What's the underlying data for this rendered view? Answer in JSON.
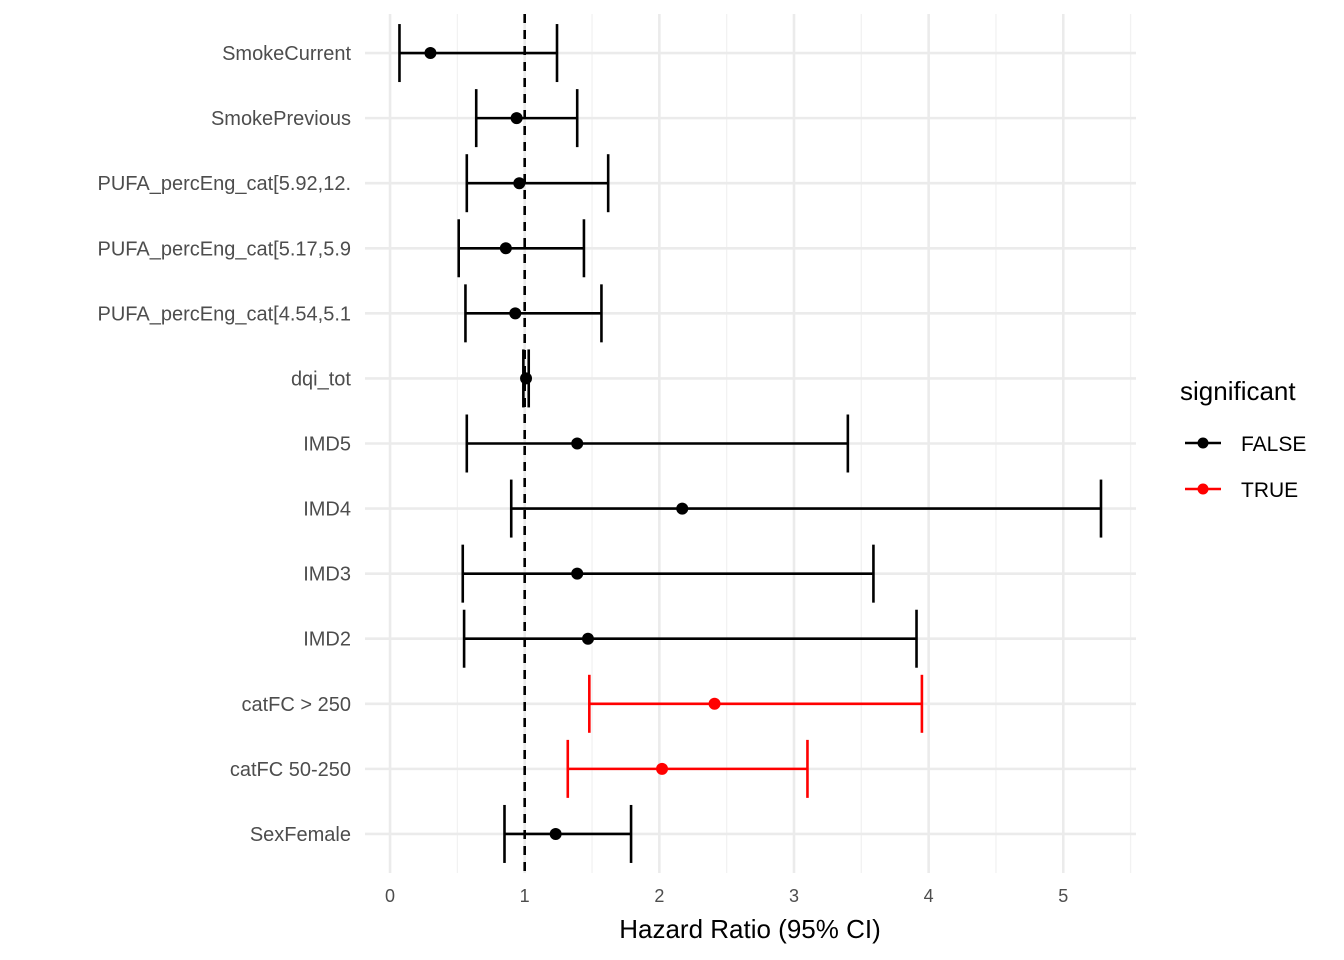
{
  "chart_data": {
    "type": "forest",
    "title": "",
    "xlabel": "Hazard Ratio (95% CI)",
    "ylabel": "",
    "xlim": [
      -0.186,
      5.54
    ],
    "x_ticks": [
      0,
      1,
      2,
      3,
      4,
      5
    ],
    "x_tick_labels": [
      "0",
      "1",
      "2",
      "3",
      "4",
      "5"
    ],
    "reference_line": 1,
    "grid": true,
    "legend": {
      "title": "significant",
      "position": "right",
      "entries": [
        {
          "label": "FALSE",
          "color": "#000000"
        },
        {
          "label": "TRUE",
          "color": "#ff0000"
        }
      ]
    },
    "rows": [
      {
        "label": "SmokeCurrent",
        "hr": 0.3,
        "lower": 0.07,
        "upper": 1.24,
        "significant": false
      },
      {
        "label": "SmokePrevious",
        "hr": 0.94,
        "lower": 0.64,
        "upper": 1.39,
        "significant": false
      },
      {
        "label": "PUFA_percEng_cat[5.92,12.",
        "hr": 0.96,
        "lower": 0.57,
        "upper": 1.62,
        "significant": false
      },
      {
        "label": "PUFA_percEng_cat[5.17,5.9",
        "hr": 0.86,
        "lower": 0.51,
        "upper": 1.44,
        "significant": false
      },
      {
        "label": "PUFA_percEng_cat[4.54,5.1",
        "hr": 0.93,
        "lower": 0.56,
        "upper": 1.57,
        "significant": false
      },
      {
        "label": "dqi_tot",
        "hr": 1.01,
        "lower": 0.99,
        "upper": 1.03,
        "significant": false
      },
      {
        "label": "IMD5",
        "hr": 1.39,
        "lower": 0.57,
        "upper": 3.4,
        "significant": false
      },
      {
        "label": "IMD4",
        "hr": 2.17,
        "lower": 0.9,
        "upper": 5.28,
        "significant": false
      },
      {
        "label": "IMD3",
        "hr": 1.39,
        "lower": 0.54,
        "upper": 3.59,
        "significant": false
      },
      {
        "label": "IMD2",
        "hr": 1.47,
        "lower": 0.55,
        "upper": 3.91,
        "significant": false
      },
      {
        "label": "catFC > 250",
        "hr": 2.41,
        "lower": 1.48,
        "upper": 3.95,
        "significant": true
      },
      {
        "label": "catFC 50-250",
        "hr": 2.02,
        "lower": 1.32,
        "upper": 3.1,
        "significant": true
      },
      {
        "label": "SexFemale",
        "hr": 1.23,
        "lower": 0.85,
        "upper": 1.79,
        "significant": false
      }
    ]
  }
}
